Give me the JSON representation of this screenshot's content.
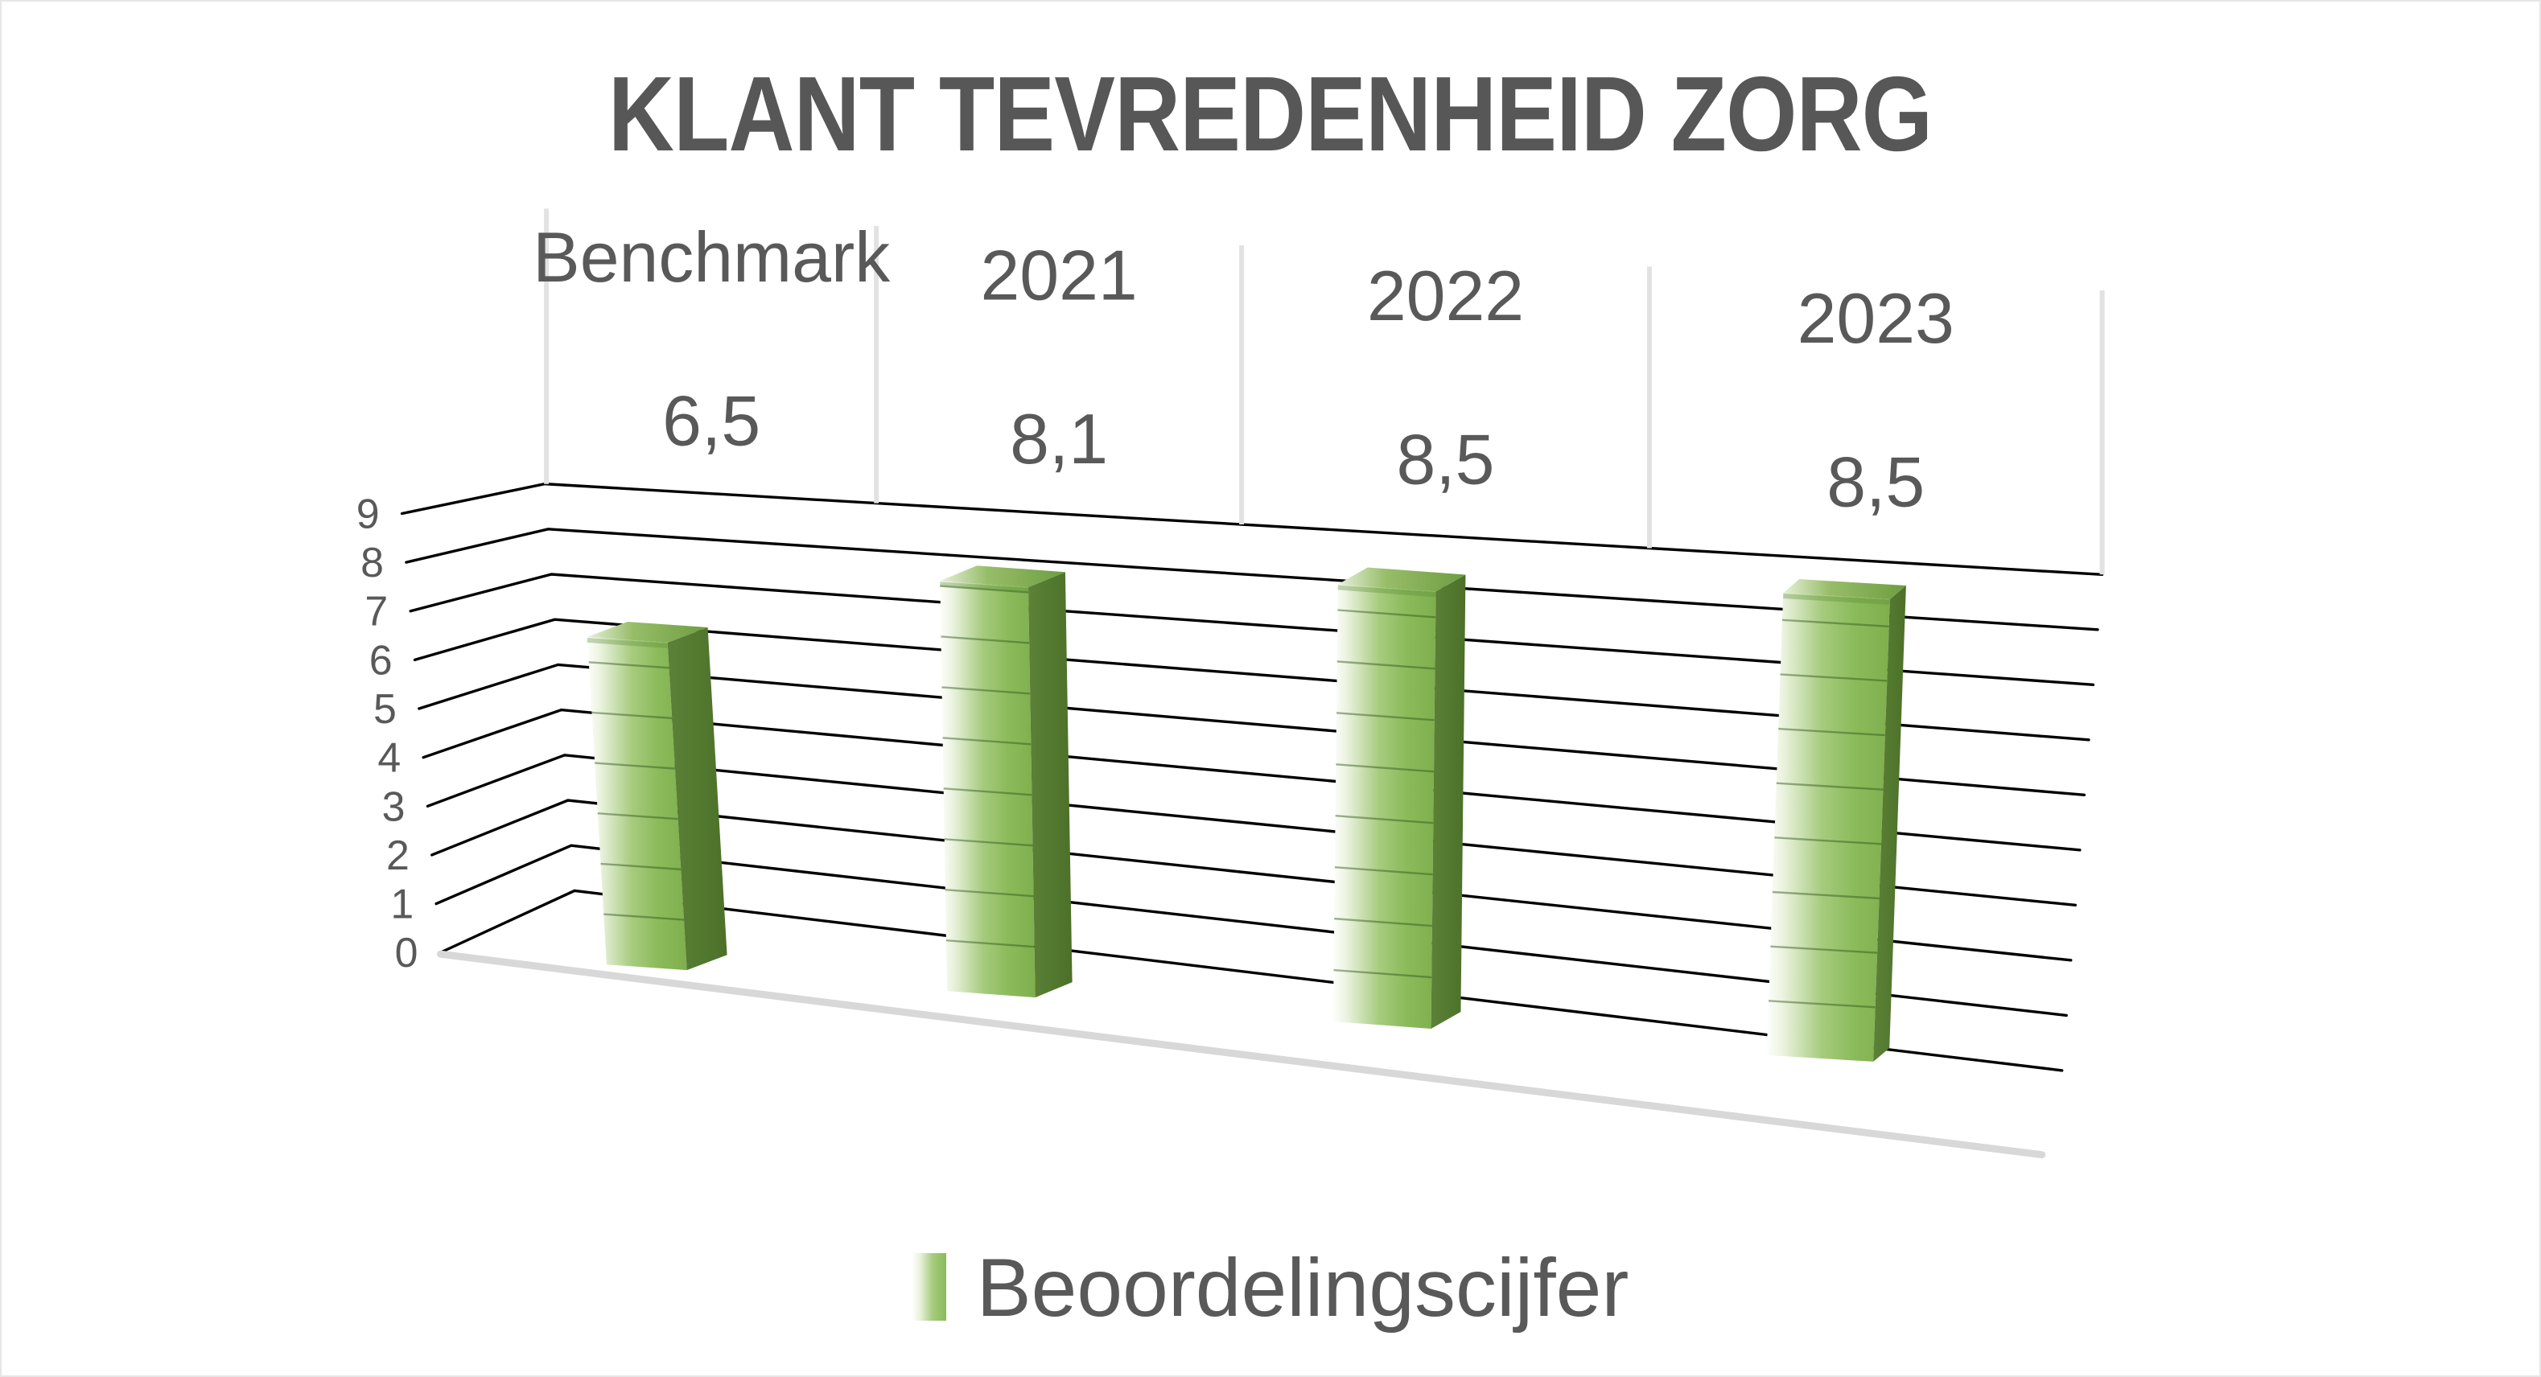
{
  "title": "KLANT TEVREDENHEID ZORG",
  "legend": {
    "label": "Beoordelingscijfer",
    "swatch_color": "#8ABA5A",
    "position": "bottom"
  },
  "chart_data": {
    "type": "bar",
    "projection": "3d-perspective-columns",
    "title": "KLANT TEVREDENHEID ZORG",
    "categories": [
      "Benchmark",
      "2021",
      "2022",
      "2023"
    ],
    "series": [
      {
        "name": "Beoordelingscijfer",
        "values": [
          6.5,
          8.1,
          8.5,
          8.5
        ],
        "display_labels": [
          "6,5",
          "8,1",
          "8,5",
          "8,5"
        ]
      }
    ],
    "value_axis": {
      "min": 0,
      "max": 9,
      "tick_step": 1,
      "tick_labels": [
        "0",
        "1",
        "2",
        "3",
        "4",
        "5",
        "6",
        "7",
        "8",
        "9"
      ]
    },
    "grid": true,
    "legend_position": "bottom",
    "colors": {
      "text": "#595959",
      "title_text": "#575757",
      "gridline": "#000000",
      "category_separator": "#e2e2e2",
      "floor_edge": "#d8d8d8",
      "bar_front_light": "#fdfefb",
      "bar_front": "#7faf4d",
      "bar_side_dark": "#4c7028",
      "bar_top": "#6e9d42",
      "bar_unit_line": "#2f5318"
    }
  }
}
